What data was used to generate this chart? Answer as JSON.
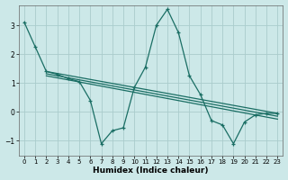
{
  "xlabel": "Humidex (Indice chaleur)",
  "bg_color": "#cce8e8",
  "grid_color": "#aacccc",
  "line_color": "#1a6e64",
  "xlim": [
    -0.5,
    23.5
  ],
  "ylim": [
    -1.5,
    3.7
  ],
  "yticks": [
    -1,
    0,
    1,
    2,
    3
  ],
  "xticks": [
    0,
    1,
    2,
    3,
    4,
    5,
    6,
    7,
    8,
    9,
    10,
    11,
    12,
    13,
    14,
    15,
    16,
    17,
    18,
    19,
    20,
    21,
    22,
    23
  ],
  "zigzag": [
    3.1,
    2.25,
    1.4,
    1.3,
    1.15,
    1.05,
    0.4,
    -1.1,
    -0.65,
    -0.55,
    0.85,
    1.55,
    3.0,
    3.55,
    2.75,
    1.25,
    0.6,
    -0.3,
    -0.45,
    -1.1,
    -0.35,
    -0.1,
    -0.05,
    -0.05
  ],
  "linear1": [
    [
      2,
      1.4
    ],
    [
      23,
      -0.05
    ]
  ],
  "linear2": [
    [
      2,
      1.32
    ],
    [
      23,
      -0.15
    ]
  ],
  "linear3": [
    [
      2,
      1.25
    ],
    [
      23,
      -0.25
    ]
  ]
}
